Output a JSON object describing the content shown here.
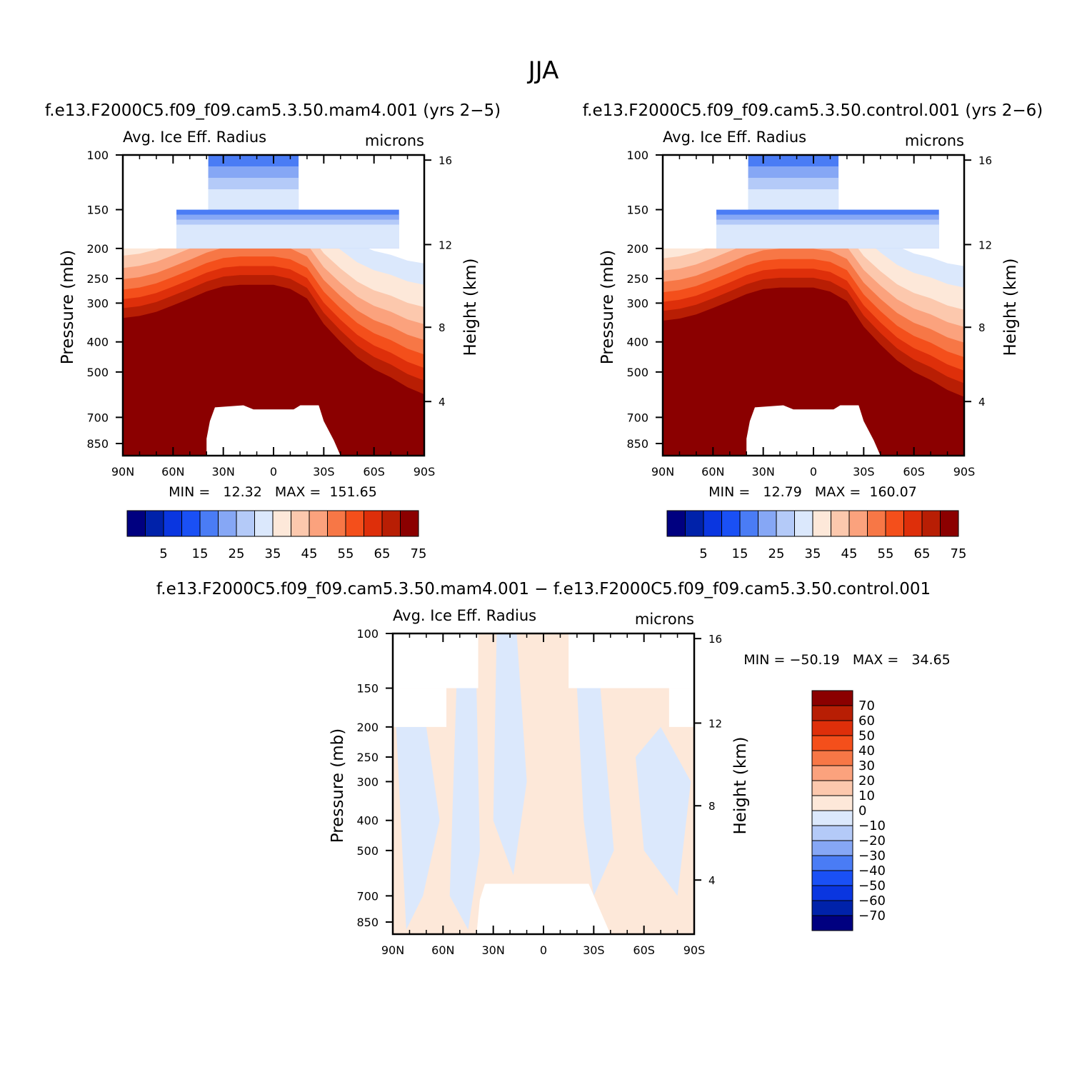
{
  "figure": {
    "season": "JJA"
  },
  "colors": {
    "abs_palette": [
      "#000080",
      "#0022aa",
      "#0a36e0",
      "#1a50f5",
      "#4a7cf5",
      "#86a7f5",
      "#b4caf8",
      "#dbe8fc",
      "#fde8d9",
      "#fcc8ad",
      "#fba27d",
      "#f77746",
      "#f44f1b",
      "#de2f0a",
      "#b81e04",
      "#8b0000"
    ],
    "diff_palette": [
      "#000080",
      "#0022aa",
      "#0a36e0",
      "#1a50f5",
      "#4a7cf5",
      "#86a7f5",
      "#b4caf8",
      "#dbe8fc",
      "#fde8d9",
      "#fcc8ad",
      "#fba27d",
      "#f77746",
      "#f44f1b",
      "#de2f0a",
      "#b81e04",
      "#8b0000"
    ]
  },
  "chart_data": [
    {
      "id": "panel-mam4",
      "type": "contour",
      "title": "f.e13.F2000C5.f09_f09.cam5.3.50.mam4.001 (yrs 2−5)",
      "variable": "Avg. Ice Eff. Radius",
      "units": "microns",
      "ylabel": "Pressure (mb)",
      "y2label": "Height (km)",
      "x_ticks": [
        "90N",
        "60N",
        "30N",
        "0",
        "30S",
        "60S",
        "90S"
      ],
      "y_ticks": [
        "100",
        "150",
        "200",
        "250",
        "300",
        "400",
        "500",
        "700",
        "850"
      ],
      "y2_ticks": [
        "16",
        "12",
        "8",
        "4"
      ],
      "stats_text": "MIN =   12.32   MAX =  151.65",
      "min": 12.32,
      "max": 151.65,
      "colorbar_levels": [
        0,
        5,
        10,
        15,
        20,
        25,
        30,
        35,
        40,
        45,
        50,
        55,
        60,
        65,
        70,
        75
      ],
      "colorbar_labels": [
        "5",
        "15",
        "25",
        "35",
        "45",
        "55",
        "65",
        "75"
      ]
    },
    {
      "id": "panel-control",
      "type": "contour",
      "title": "f.e13.F2000C5.f09_f09.cam5.3.50.control.001 (yrs 2−6)",
      "variable": "Avg. Ice Eff. Radius",
      "units": "microns",
      "ylabel": "Pressure (mb)",
      "y2label": "Height (km)",
      "x_ticks": [
        "90N",
        "60N",
        "30N",
        "0",
        "30S",
        "60S",
        "90S"
      ],
      "y_ticks": [
        "100",
        "150",
        "200",
        "250",
        "300",
        "400",
        "500",
        "700",
        "850"
      ],
      "y2_ticks": [
        "16",
        "12",
        "8",
        "4"
      ],
      "stats_text": "MIN =   12.79   MAX =  160.07",
      "min": 12.79,
      "max": 160.07,
      "colorbar_levels": [
        0,
        5,
        10,
        15,
        20,
        25,
        30,
        35,
        40,
        45,
        50,
        55,
        60,
        65,
        70,
        75
      ],
      "colorbar_labels": [
        "5",
        "15",
        "25",
        "35",
        "45",
        "55",
        "65",
        "75"
      ]
    },
    {
      "id": "panel-diff",
      "type": "contour",
      "title": "f.e13.F2000C5.f09_f09.cam5.3.50.mam4.001 − f.e13.F2000C5.f09_f09.cam5.3.50.control.001",
      "variable": "Avg. Ice Eff. Radius",
      "units": "microns",
      "ylabel": "Pressure (mb)",
      "y2label": "Height (km)",
      "x_ticks": [
        "90N",
        "60N",
        "30N",
        "0",
        "30S",
        "60S",
        "90S"
      ],
      "y_ticks": [
        "100",
        "150",
        "200",
        "250",
        "300",
        "400",
        "500",
        "700",
        "850"
      ],
      "y2_ticks": [
        "16",
        "12",
        "8",
        "4"
      ],
      "stats_text": "MIN = −50.19   MAX =   34.65",
      "min": -50.19,
      "max": 34.65,
      "colorbar_levels": [
        -70,
        -60,
        -50,
        -40,
        -30,
        -20,
        -10,
        0,
        10,
        20,
        30,
        40,
        50,
        60,
        70
      ],
      "colorbar_labels": [
        "70",
        "60",
        "50",
        "40",
        "30",
        "20",
        "10",
        "0",
        "−10",
        "−20",
        "−30",
        "−40",
        "−50",
        "−60",
        "−70"
      ]
    }
  ]
}
